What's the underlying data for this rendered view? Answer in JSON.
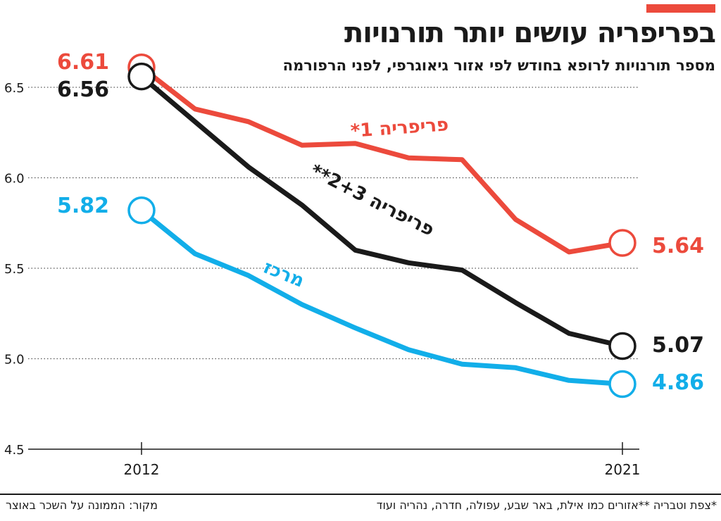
{
  "header": {
    "title": "בפריפריה עושים יותר תורנויות",
    "subtitle": "מספר תורנויות לרופא בחודש לפי אזור גיאוגרפי, לפני הרפורמה"
  },
  "footer": {
    "footnote": "*צפת וטבריה **אזורים כמו אילת, באר שבע, עפולה, חדרה, נהריה ועוד",
    "source": "מקור: הממונה על השכר באוצר"
  },
  "colors": {
    "accent": "#ec4a3c",
    "periphery1": "#ec4a3c",
    "periphery23": "#1a1a1a",
    "center": "#12aee9",
    "grid": "#555555"
  },
  "chart_data": {
    "type": "line",
    "title": "בפריפריה עושים יותר תורנויות",
    "subtitle": "מספר תורנויות לרופא בחודש לפי אזור גיאוגרפי, לפני הרפורמה",
    "x": [
      2012,
      2013,
      2014,
      2015,
      2016,
      2017,
      2018,
      2019,
      2020,
      2021
    ],
    "x_tick_labels": [
      "2012",
      "2021"
    ],
    "y_ticks": [
      "4.5",
      "5.0",
      "5.5",
      "6.0",
      "6.5"
    ],
    "ylim": [
      4.5,
      6.5
    ],
    "grid": "horizontal dotted",
    "series": [
      {
        "key": "periphery1",
        "name": "פריפריה 1*",
        "values": [
          6.61,
          6.38,
          6.31,
          6.18,
          6.19,
          6.11,
          6.1,
          5.77,
          5.59,
          5.64
        ],
        "start_label": "6.61",
        "end_label": "5.64"
      },
      {
        "key": "periphery23",
        "name": "פריפריה 2+3**",
        "values": [
          6.56,
          6.31,
          6.06,
          5.85,
          5.6,
          5.53,
          5.49,
          5.31,
          5.14,
          5.07
        ],
        "start_label": "6.56",
        "end_label": "5.07"
      },
      {
        "key": "center",
        "name": "מרכז",
        "values": [
          5.82,
          5.58,
          5.46,
          5.3,
          5.17,
          5.05,
          4.97,
          4.95,
          4.88,
          4.86
        ],
        "start_label": "5.82",
        "end_label": "4.86"
      }
    ]
  }
}
